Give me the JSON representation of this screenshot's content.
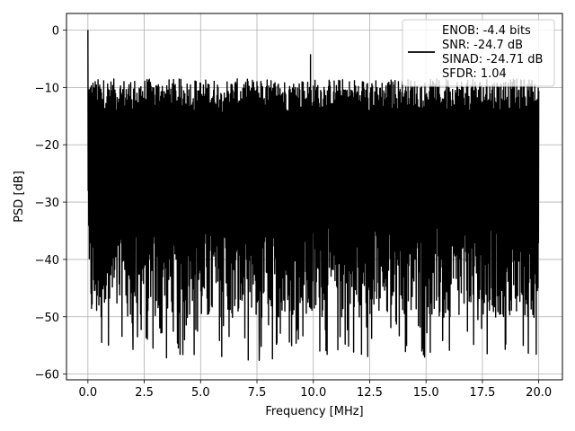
{
  "chart_data": {
    "type": "line",
    "title": "",
    "xlabel": "Frequency [MHz]",
    "ylabel": "PSD [dB]",
    "xlim": [
      -0.95,
      21.05
    ],
    "ylim": [
      -61.0,
      2.9
    ],
    "xticks": [
      0.0,
      2.5,
      5.0,
      7.5,
      10.0,
      12.5,
      15.0,
      17.5,
      20.0
    ],
    "xtick_labels": [
      "0.0",
      "2.5",
      "5.0",
      "7.5",
      "10.0",
      "12.5",
      "15.0",
      "17.5",
      "20.0"
    ],
    "yticks": [
      0,
      -10,
      -20,
      -30,
      -40,
      -50,
      -60
    ],
    "ytick_labels": [
      "0",
      "−10",
      "−20",
      "−30",
      "−40",
      "−50",
      "−60"
    ],
    "grid": true,
    "legend_position": "top-right",
    "series": [
      {
        "name": "ENOB: -4.4 bits\nSNR: -24.7 dB\nSINAD: -24.71 dB\nSFDR: 1.04",
        "color": "#000000",
        "x_range": [
          0.0,
          20.0
        ],
        "num_points": 1600,
        "peak": {
          "x": 0.0,
          "y": 0.0
        },
        "upper_envelope_db": -12.0,
        "lower_envelope_db": -38.0,
        "notable_dips": [
          {
            "x": 2.0,
            "y": -55.7
          },
          {
            "x": 2.2,
            "y": -53.5
          },
          {
            "x": 3.97,
            "y": -54.6
          },
          {
            "x": 7.6,
            "y": -57.6
          },
          {
            "x": 17.3,
            "y": -50.5
          }
        ],
        "notable_peaks": [
          {
            "x": 9.87,
            "y": -4.3
          }
        ]
      }
    ]
  }
}
